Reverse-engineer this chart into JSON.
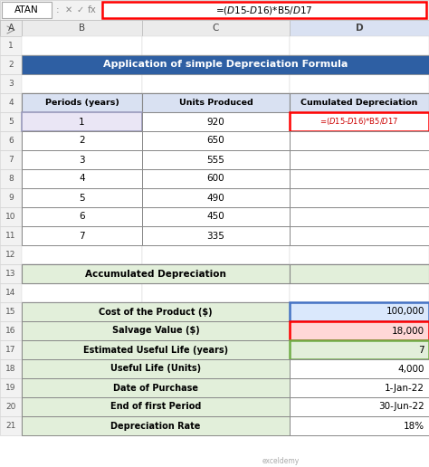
{
  "formula_bar_text": "=($D$15-$D$16)*B5/$D$17",
  "cell_ref": "ATAN",
  "title": "Application of simple Depreciation Formula",
  "title_bg": "#2E5FA3",
  "title_fg": "#FFFFFF",
  "header_bg": "#D9E1F2",
  "table1_headers": [
    "Periods (years)",
    "Units Produced",
    "Cumulated Depreciation"
  ],
  "periods": [
    1,
    2,
    3,
    4,
    5,
    6,
    7
  ],
  "units": [
    920,
    650,
    555,
    600,
    490,
    450,
    335
  ],
  "row5_formula": "=($D$15-$D$16)*B5/$D$17",
  "accum_label": "Accumulated Depreciation",
  "table2_data": [
    [
      "Cost of the Product ($)",
      "100,000"
    ],
    [
      "Salvage Value ($)",
      "18,000"
    ],
    [
      "Estimated Useful Life (years)",
      "7"
    ],
    [
      "Useful Life (Units)",
      "4,000"
    ],
    [
      "Date of Purchase",
      "1-Jan-22"
    ],
    [
      "End of first Period",
      "30-Jun-22"
    ],
    [
      "Depreciation Rate",
      "18%"
    ]
  ],
  "green_bg": "#E2EFDA",
  "navbar_bg": "#F2F2F2",
  "col_header_bg": "#EBEBEB",
  "row_header_bg": "#F2F2F2",
  "row5_b_bg": "#EAE6F5",
  "row5_b_border": "#9999BB",
  "row15_d_bg": "#DAE8FC",
  "row15_d_border": "#4472C4",
  "row16_d_bg": "#FFD7D7",
  "row16_d_border": "#FF0000",
  "row17_d_bg": "#E2EFDA",
  "row17_d_border": "#70AD47",
  "d_col_header_bg": "#D9E1F2",
  "watermark_color": "#AAAAAA"
}
